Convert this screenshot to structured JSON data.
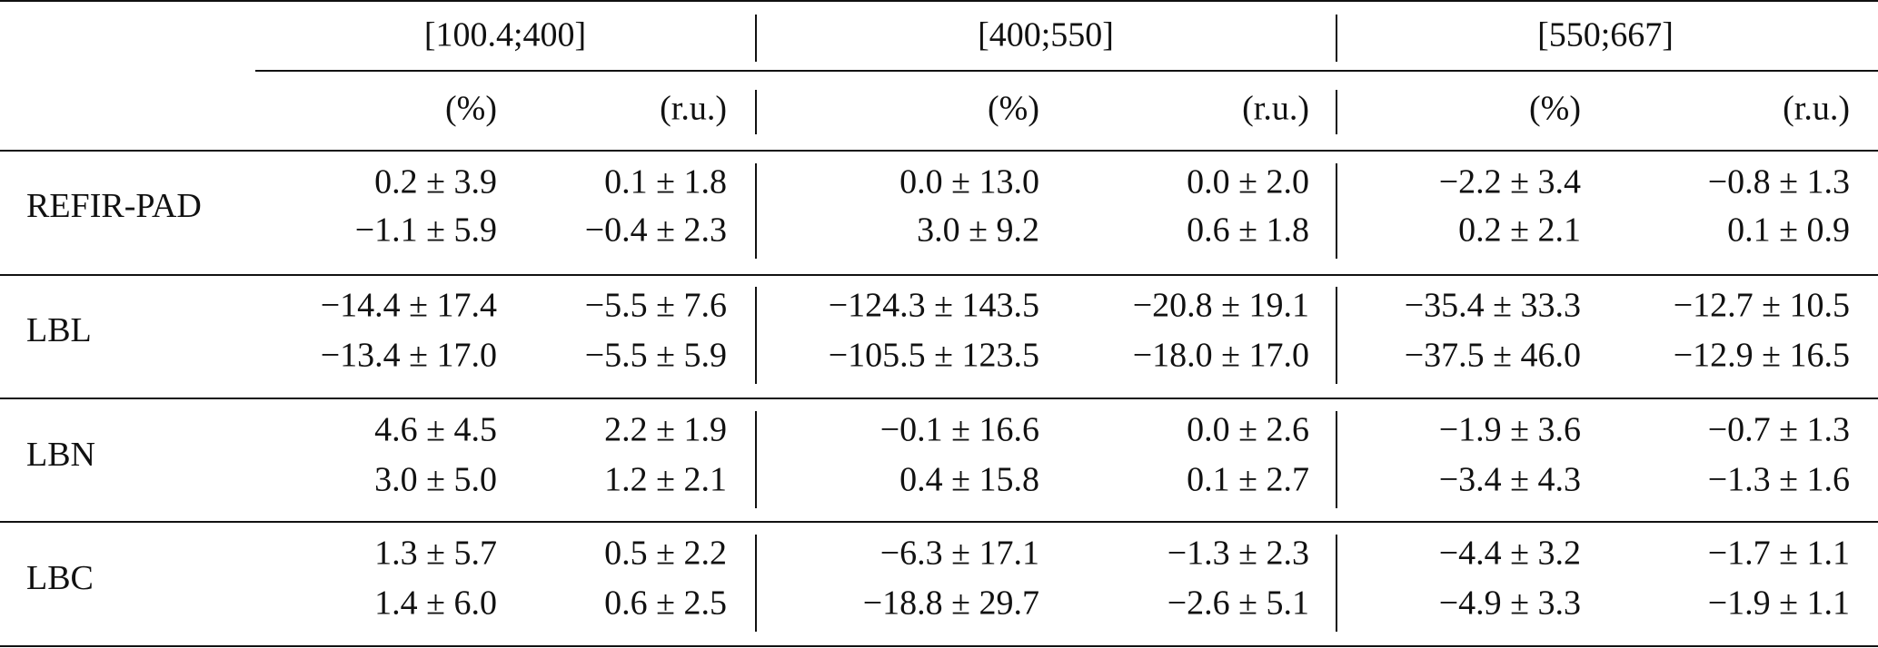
{
  "table": {
    "column_groups": [
      "[100.4;400]",
      "[400;550]",
      "[550;667]"
    ],
    "units": [
      "(%)",
      "(r.u.)",
      "(%)",
      "(r.u.)",
      "(%)",
      "(r.u.)"
    ],
    "rows": [
      {
        "label": "REFIR-PAD",
        "cells": [
          [
            "0.2 ± 3.9",
            "−1.1 ± 5.9"
          ],
          [
            "0.1 ± 1.8",
            "−0.4 ± 2.3"
          ],
          [
            "0.0 ± 13.0",
            "3.0 ± 9.2"
          ],
          [
            "0.0 ± 2.0",
            "0.6 ± 1.8"
          ],
          [
            "−2.2 ± 3.4",
            "0.2 ± 2.1"
          ],
          [
            "−0.8 ± 1.3",
            "0.1 ± 0.9"
          ]
        ]
      },
      {
        "label": "LBL",
        "cells": [
          [
            "−14.4 ± 17.4",
            "−13.4 ± 17.0"
          ],
          [
            "−5.5 ± 7.6",
            "−5.5 ± 5.9"
          ],
          [
            "−124.3 ± 143.5",
            "−105.5 ± 123.5"
          ],
          [
            "−20.8 ± 19.1",
            "−18.0 ± 17.0"
          ],
          [
            "−35.4 ± 33.3",
            "−37.5 ± 46.0"
          ],
          [
            "−12.7 ± 10.5",
            "−12.9 ± 16.5"
          ]
        ]
      },
      {
        "label": "LBN",
        "cells": [
          [
            "4.6 ± 4.5",
            "3.0 ± 5.0"
          ],
          [
            "2.2 ± 1.9",
            "1.2 ± 2.1"
          ],
          [
            "−0.1 ± 16.6",
            "0.4 ± 15.8"
          ],
          [
            "0.0 ± 2.6",
            "0.1 ± 2.7"
          ],
          [
            "−1.9 ± 3.6",
            "−3.4 ± 4.3"
          ],
          [
            "−0.7 ± 1.3",
            "−1.3 ± 1.6"
          ]
        ]
      },
      {
        "label": "LBC",
        "cells": [
          [
            "1.3 ± 5.7",
            "1.4 ± 6.0"
          ],
          [
            "0.5 ± 2.2",
            "0.6 ± 2.5"
          ],
          [
            "−6.3 ± 17.1",
            "−18.8 ± 29.7"
          ],
          [
            "−1.3 ± 2.3",
            "−2.6 ± 5.1"
          ],
          [
            "−4.4 ± 3.2",
            "−4.9 ± 3.3"
          ],
          [
            "−1.7 ± 1.1",
            "−1.9 ± 1.1"
          ]
        ]
      }
    ]
  }
}
